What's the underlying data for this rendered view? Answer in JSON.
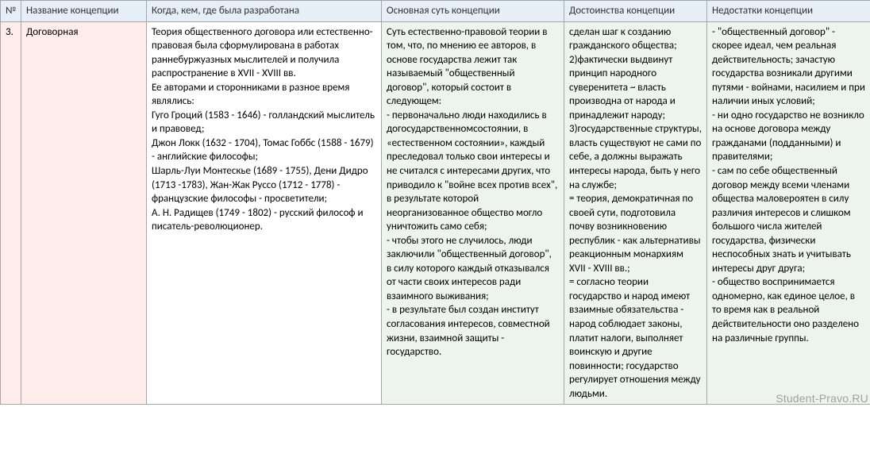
{
  "table": {
    "headers": {
      "num": "№",
      "name": "Название концепции",
      "when": "Когда, кем, где была разработана",
      "essence": "Основная суть концепции",
      "pros": "Достоинства концепции",
      "cons": "Недостатки концепции"
    },
    "row": {
      "num": "3.",
      "name": "Договорная",
      "when": "Теория общественного договора или естественно-правовая была сформулирована в работах раннебуржуазных мыслителей и получила распространение в XVII - XVIII вв.\nЕе авторами и сторонниками в разное время являлись:\nГуго Гроций (1583 - 1646) - голландский мыслитель и правовед;\nДжон Локк (1632 - 1704), Томас Гоббс (1588 - 1679) - английские философы;\nШарль-Луи Монтескье (1689 - 1755), Дени Дидро (1713 -1783), Жан-Жак Руссо (1712 - 1778) - французские философы - просветители;\nА. Н. Радищев (1749 - 1802) - русский философ и писатель-революционер.",
      "essence": "Суть естественно-правовой теории в том, что, по мнению ее авторов, в основе государства лежит так называемый \"общественный договор\", который состоит в следующем:\n- первоначально люди находились в догосударственномсостоянии, в «естественном состоянии», каждый преследовал только свои интересы и не считался с интересами других, что приводило к \"войне всех против всех\", в результате которой неорганизованное общество могло уничтожить само себя;\n- чтобы этого не случилось, люди заключили \"общественный договор\", в силу которого каждый отказывался от части своих интересов ради взаимного выживания;\n- в результате был создан институт согласования интересов, совместной жизни, взаимной защиты - государство.",
      "pros": "сделан шаг к созданию гражданского общества;\n2)фактически выдвинут принцип народного суверенитета ~ власть производна от народа и принадлежит народу;\n3)государственные структуры, власть существуют не сами по себе, а должны выражать интересы народа, быть у него на службе;\n= теория, демократичная по своей сути, подготовила почву возникновению республик - как альтернативы реакционным монархиям XVII - XVIII вв.;\n= согласно теории государство и народ имеют взаимные обязательства - народ соблюдает законы, платит налоги, выполняет воинскую и другие повинности; государство регулирует отношения между людьми.",
      "cons": "- \"общественный договор\" - скорее идеал, чем реальная действительность; зачастую государства возникали другими путями - войнами, насилием и при наличии иных условий;\n- ни одно государство не возникло на основе договора между гражданами (подданными) и правителями;\n- сам по себе общественный договор между всеми членами общества маловероятен в силу различия интересов и слишком большого числа жителей государства, физически неспособных знать и учитывать интересы друг друга;\n- общество воспринимается одномерно, как единое целое, в то время как в реальной действительности оно разделено на различные группы."
    }
  },
  "watermark": "Student-Pravo.RU",
  "colors": {
    "header_bg": "#e6eef7",
    "name_bg": "#fdecea",
    "content_bg": "#edf4ed",
    "border": "#a6a6a6",
    "text": "#333333",
    "watermark": "#a0a0a0"
  }
}
